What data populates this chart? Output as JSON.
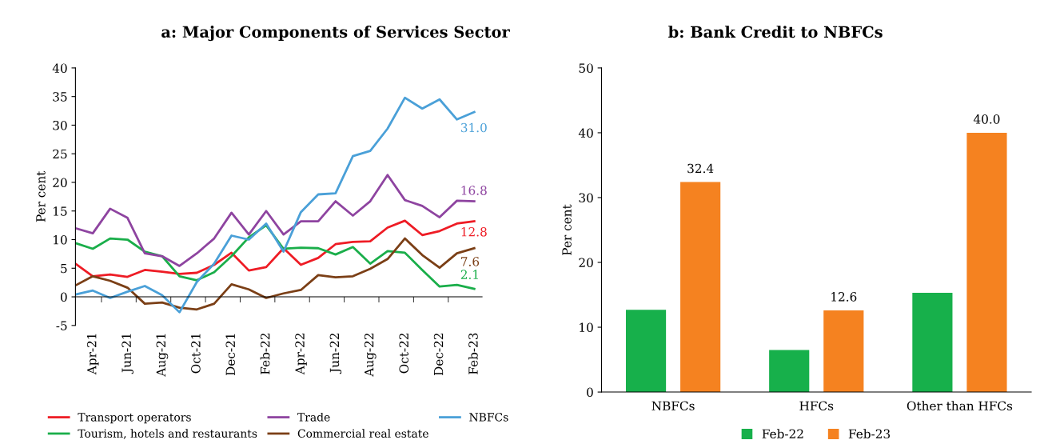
{
  "chart_data": [
    {
      "type": "line",
      "title": "a: Major Components of Services Sector",
      "ylabel": "Per cent",
      "categories": [
        null,
        "Apr-21",
        null,
        "Jun-21",
        null,
        "Aug-21",
        null,
        "Oct-21",
        null,
        "Dec-21",
        null,
        "Feb-22",
        null,
        "Apr-22",
        null,
        "Jun-22",
        null,
        "Aug-22",
        null,
        "Oct-22",
        null,
        "Dec-22",
        null,
        "Feb-23"
      ],
      "ylim": [
        -5,
        40
      ],
      "yticks": [
        -5,
        0,
        5,
        10,
        15,
        20,
        25,
        30,
        35,
        40
      ],
      "legend": "bottom",
      "series": [
        {
          "name": "Transport operators",
          "color": "#ee1c25",
          "values": [
            5.8,
            3.6,
            3.9,
            3.5,
            4.7,
            4.4,
            4.0,
            4.2,
            5.6,
            7.7,
            4.6,
            5.2,
            8.5,
            5.6,
            6.8,
            9.2,
            9.6,
            9.7,
            12.1,
            13.3,
            10.8,
            11.5,
            12.8,
            13.2
          ],
          "value_labels": [
            null,
            null,
            null,
            null,
            null,
            null,
            null,
            null,
            null,
            null,
            null,
            null,
            null,
            null,
            null,
            null,
            null,
            null,
            null,
            null,
            null,
            null,
            "12.8",
            null
          ]
        },
        {
          "name": "Tourism, hotels and restaurants",
          "color": "#1aae4a",
          "values": [
            9.4,
            8.4,
            10.2,
            10.0,
            7.9,
            7.1,
            3.6,
            2.9,
            4.3,
            7.1,
            10.4,
            12.5,
            8.4,
            8.6,
            8.5,
            7.4,
            8.7,
            5.8,
            8.0,
            7.7,
            4.7,
            1.8,
            2.1,
            1.4
          ],
          "value_labels": [
            null,
            null,
            null,
            null,
            null,
            null,
            null,
            null,
            null,
            null,
            null,
            null,
            null,
            null,
            null,
            null,
            null,
            null,
            null,
            null,
            null,
            null,
            "2.1",
            null
          ]
        },
        {
          "name": "Trade",
          "color": "#8e44a0",
          "values": [
            12.0,
            11.1,
            15.4,
            13.8,
            7.6,
            7.1,
            5.4,
            7.6,
            10.2,
            14.7,
            10.9,
            15.0,
            10.9,
            13.2,
            13.2,
            16.7,
            14.2,
            16.7,
            21.3,
            16.9,
            15.9,
            13.9,
            16.8,
            16.7
          ],
          "value_labels": [
            null,
            null,
            null,
            null,
            null,
            null,
            null,
            null,
            null,
            null,
            null,
            null,
            null,
            null,
            null,
            null,
            null,
            null,
            null,
            null,
            null,
            null,
            "16.8",
            null
          ]
        },
        {
          "name": "Commercial real estate",
          "color": "#7b3f16",
          "values": [
            2.0,
            3.6,
            2.8,
            1.6,
            -1.2,
            -1.0,
            -1.9,
            -2.2,
            -1.2,
            2.2,
            1.3,
            -0.2,
            0.6,
            1.2,
            3.8,
            3.4,
            3.6,
            4.9,
            6.6,
            10.2,
            7.3,
            5.1,
            7.6,
            8.5
          ],
          "value_labels": [
            null,
            null,
            null,
            null,
            null,
            null,
            null,
            null,
            null,
            null,
            null,
            null,
            null,
            null,
            null,
            null,
            null,
            null,
            null,
            null,
            null,
            null,
            "7.6",
            null
          ]
        },
        {
          "name": "NBFCs",
          "color": "#4aa0d8",
          "values": [
            0.4,
            1.1,
            -0.2,
            0.9,
            1.9,
            0.3,
            -2.7,
            2.6,
            5.8,
            10.7,
            10.0,
            12.8,
            7.9,
            14.8,
            17.9,
            18.1,
            24.6,
            25.5,
            29.4,
            34.8,
            32.9,
            34.5,
            31.0,
            32.3
          ],
          "value_labels": [
            null,
            null,
            null,
            null,
            null,
            null,
            null,
            null,
            null,
            null,
            null,
            null,
            null,
            null,
            null,
            null,
            null,
            null,
            null,
            null,
            null,
            null,
            "31.0",
            null
          ]
        }
      ]
    },
    {
      "type": "bar",
      "title": "b: Bank Credit to NBFCs",
      "ylabel": "Per cent",
      "categories": [
        "NBFCs",
        "HFCs",
        "Other than HFCs"
      ],
      "ylim": [
        0,
        50
      ],
      "yticks": [
        0,
        10,
        20,
        30,
        40,
        50
      ],
      "legend": "bottom",
      "series": [
        {
          "name": "Feb-22",
          "color": "#17b04b",
          "values": [
            12.7,
            6.5,
            15.3
          ]
        },
        {
          "name": "Feb-23",
          "color": "#f58220",
          "values": [
            32.4,
            12.6,
            40.0
          ],
          "value_labels": [
            "32.4",
            "12.6",
            "40.0"
          ]
        }
      ]
    }
  ]
}
